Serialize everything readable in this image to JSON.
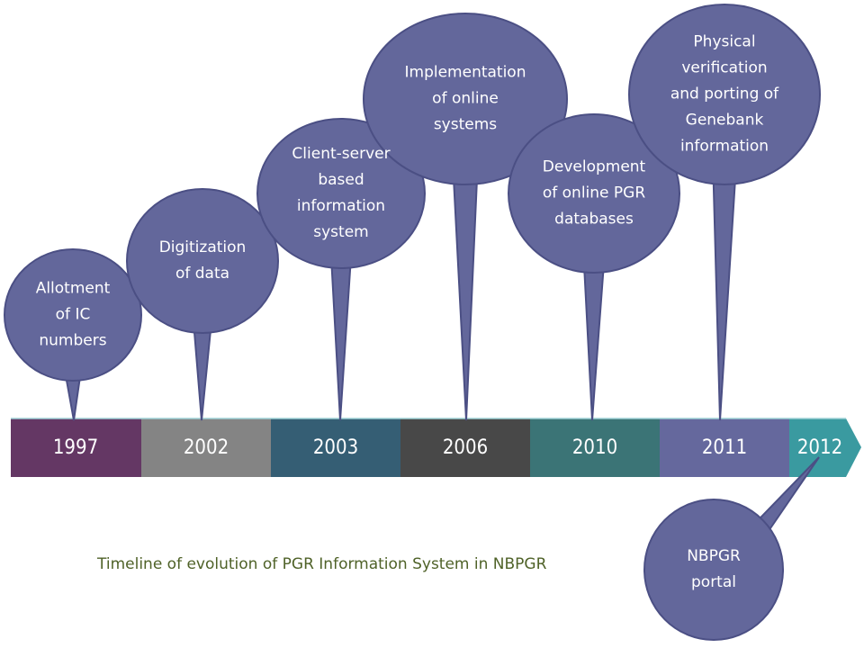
{
  "colors": {
    "bubble": "#63679b",
    "bubble_border": "#4b4f84",
    "caption": "#4f6228"
  },
  "timeline": [
    {
      "year": "1997",
      "color": "#643764"
    },
    {
      "year": "2002",
      "color": "#848484"
    },
    {
      "year": "2003",
      "color": "#355e74"
    },
    {
      "year": "2006",
      "color": "#484848"
    },
    {
      "year": "2010",
      "color": "#3b7476"
    },
    {
      "year": "2011",
      "color": "#65689d"
    },
    {
      "year": "2012",
      "color": "#3a9aa0"
    }
  ],
  "bubbles": [
    {
      "text": "Allotment\nof IC\nnumbers",
      "year": "1997"
    },
    {
      "text": "Digitization\nof data",
      "year": "2002"
    },
    {
      "text": "Client-server\nbased\ninformation\nsystem",
      "year": "2003"
    },
    {
      "text": "Implementation\nof online\nsystems",
      "year": "2006"
    },
    {
      "text": "Development\nof online PGR\ndatabases",
      "year": "2010"
    },
    {
      "text": "Physical\nverification\nand porting of\nGenebank\ninformation",
      "year": "2011"
    },
    {
      "text": "NBPGR\nportal",
      "year": "2012"
    }
  ],
  "caption": "Timeline of evolution of PGR Information System in NBPGR"
}
